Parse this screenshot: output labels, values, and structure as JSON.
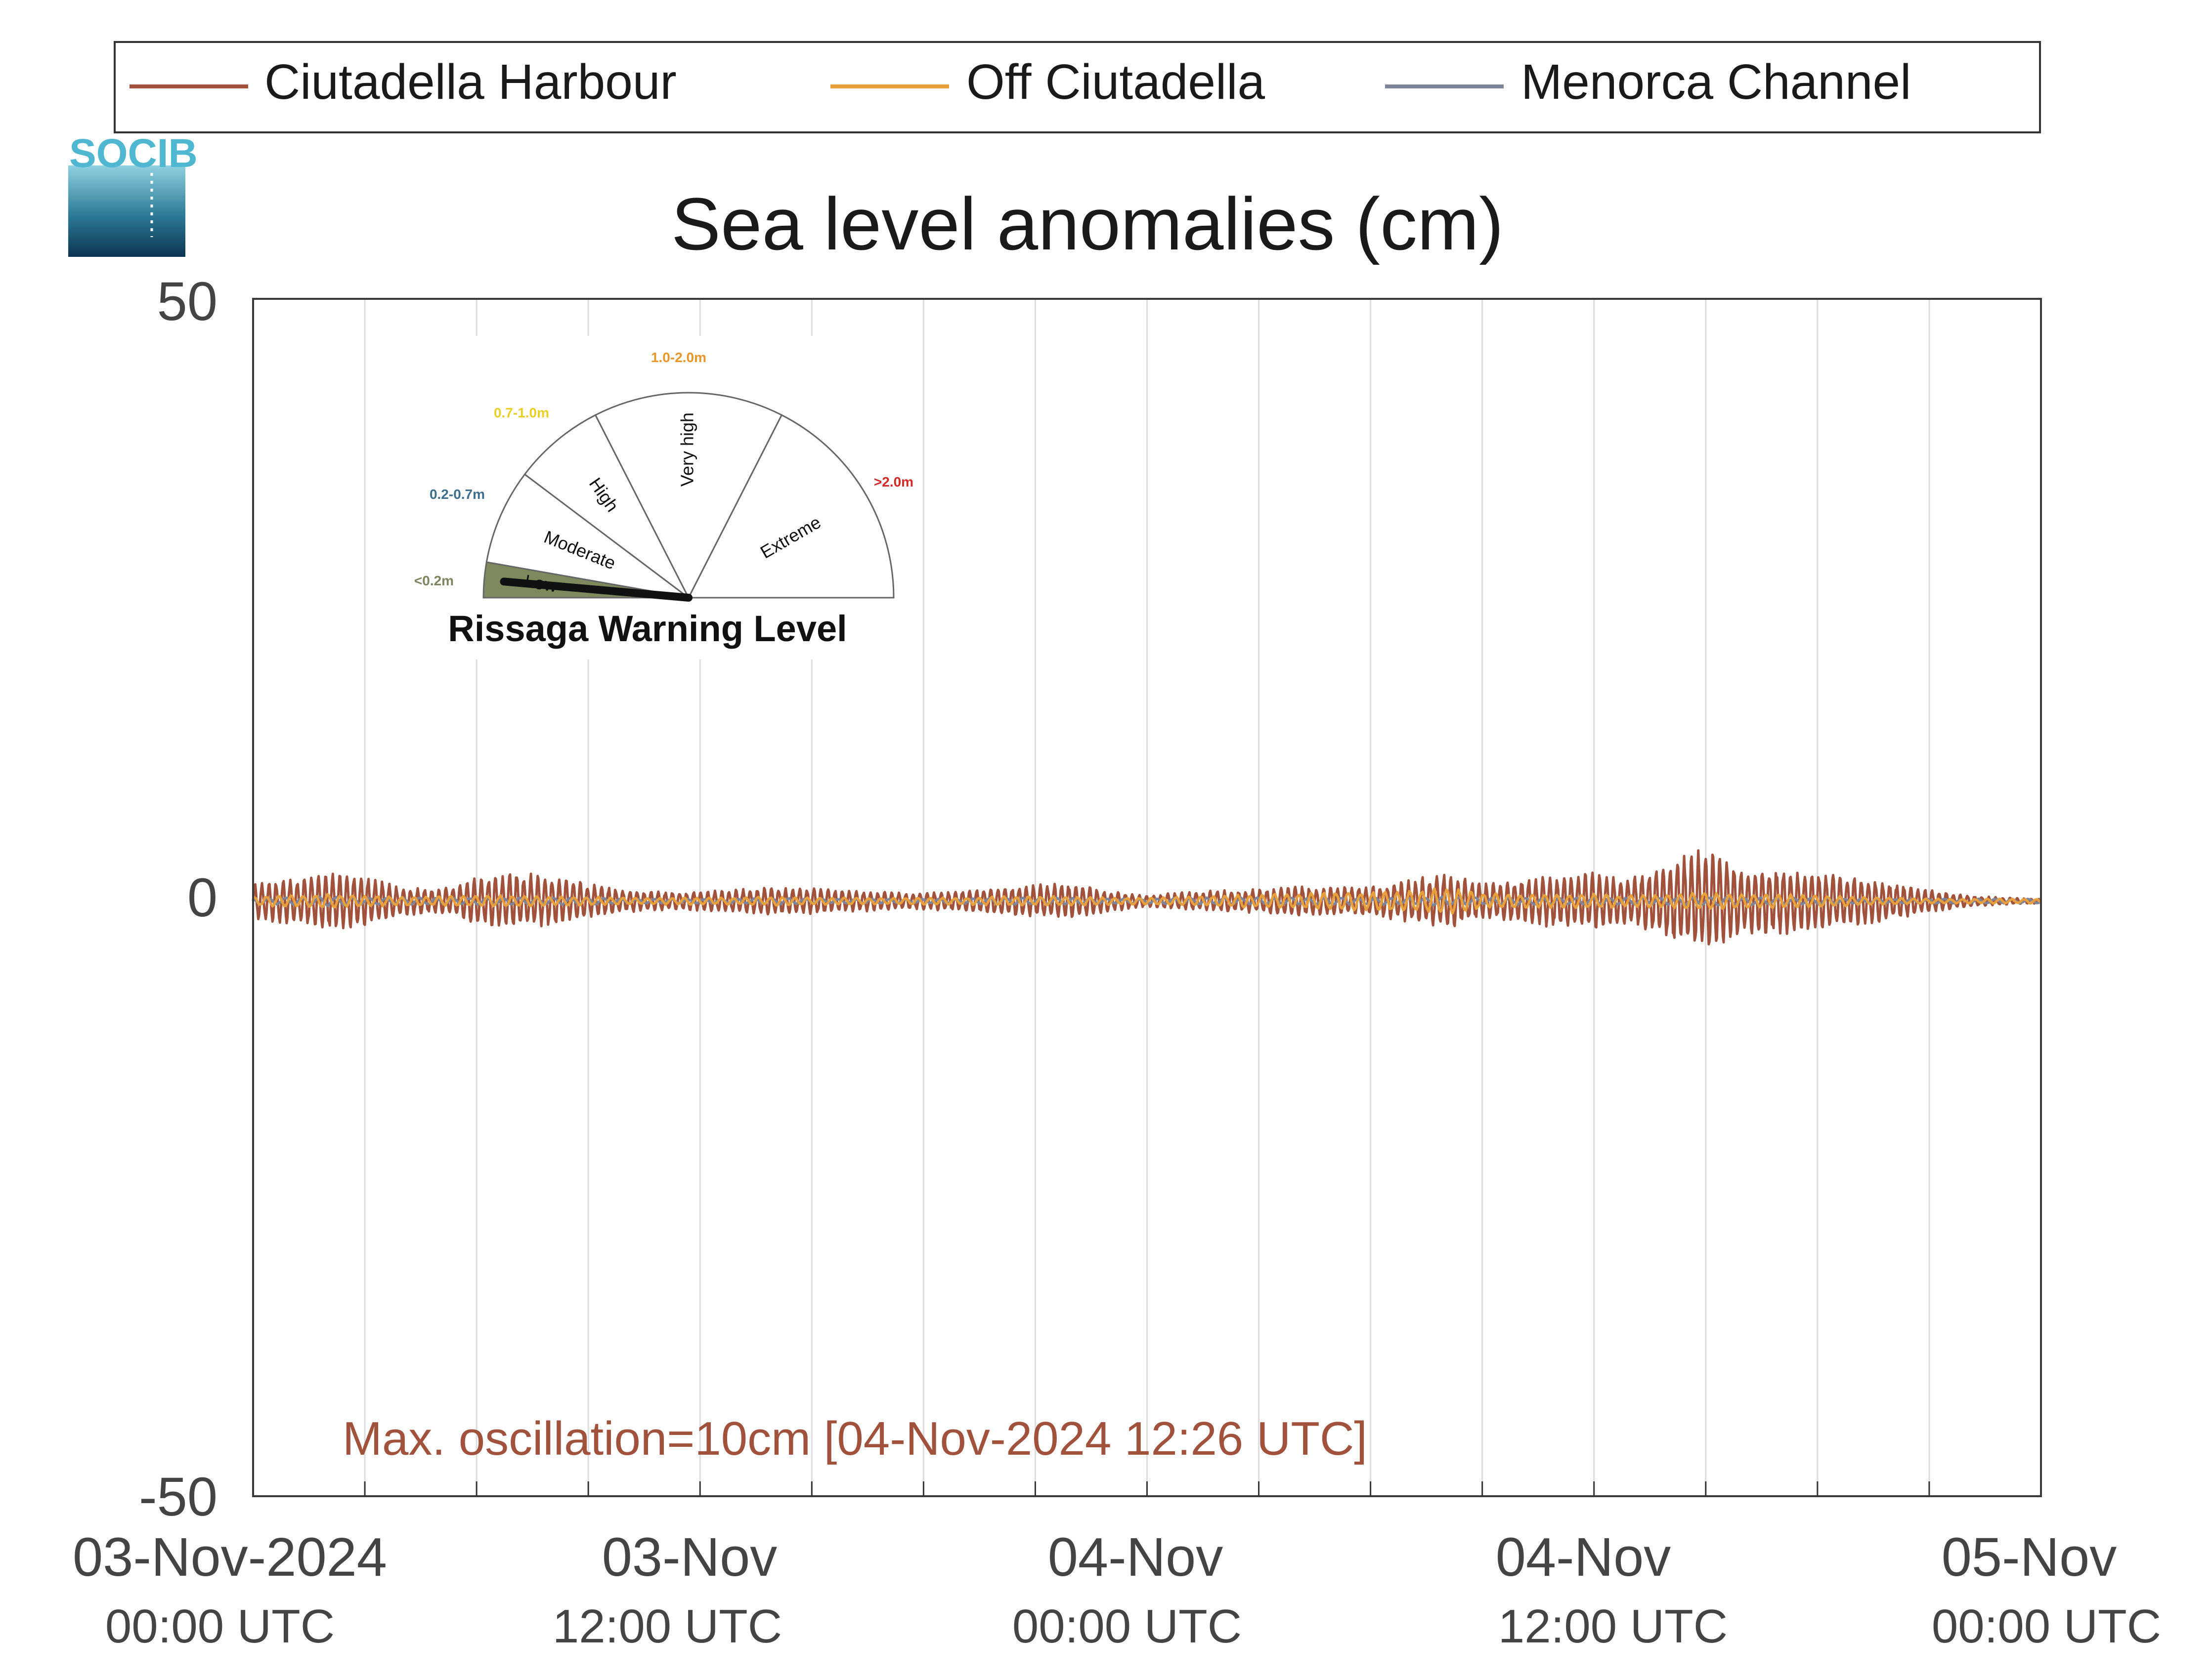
{
  "chart_data": {
    "type": "line",
    "title": "Sea level anomalies (cm)",
    "xlabel": "",
    "ylabel": "",
    "ylim": [
      -50,
      50
    ],
    "yticks": [
      -50,
      0,
      50
    ],
    "xlim_hours": [
      0,
      48
    ],
    "x_tick_labels": [
      {
        "top": "03-Nov-2024",
        "bottom": "00:00 UTC"
      },
      {
        "top": "03-Nov",
        "bottom": "12:00 UTC"
      },
      {
        "top": "04-Nov",
        "bottom": "00:00 UTC"
      },
      {
        "top": "04-Nov",
        "bottom": "12:00 UTC"
      },
      {
        "top": "05-Nov",
        "bottom": "00:00 UTC"
      }
    ],
    "grid": true,
    "legend_position": "top",
    "series": [
      {
        "name": "Ciutadella Harbour",
        "color": "#A0523D"
      },
      {
        "name": "Off Ciutadella",
        "color": "#E8A03C"
      },
      {
        "name": "Menorca Channel",
        "color": "#7E8499"
      }
    ],
    "envelope": {
      "hours": [
        0,
        1,
        2,
        3,
        4,
        5,
        6,
        7,
        8,
        9,
        10,
        11,
        12,
        13,
        14,
        15,
        16,
        17,
        18,
        19,
        20,
        21,
        22,
        23,
        24,
        25,
        26,
        27,
        28,
        29,
        30,
        31,
        32,
        33,
        34,
        35,
        36,
        37,
        38,
        39,
        40,
        41,
        42,
        43,
        44,
        45,
        46,
        47,
        48
      ],
      "Ciutadella Harbour": [
        1.5,
        2.0,
        2.5,
        2.2,
        1.2,
        1.0,
        2.0,
        2.5,
        2.2,
        1.5,
        1.0,
        0.8,
        0.8,
        1.0,
        1.2,
        1.2,
        0.9,
        0.8,
        0.7,
        0.9,
        1.2,
        1.4,
        1.5,
        0.9,
        0.5,
        0.8,
        0.9,
        1.0,
        1.3,
        1.2,
        1.3,
        1.8,
        2.4,
        1.5,
        1.8,
        2.3,
        2.4,
        2.0,
        3.5,
        4.6,
        3.0,
        2.8,
        2.5,
        2.2,
        1.6,
        1.0,
        0.5,
        0.3,
        0.2
      ],
      "Off Ciutadella": [
        0.4,
        0.5,
        0.6,
        0.5,
        0.4,
        0.4,
        0.5,
        0.5,
        0.4,
        0.4,
        0.3,
        0.3,
        0.3,
        0.3,
        0.4,
        0.3,
        0.3,
        0.3,
        0.3,
        0.3,
        0.4,
        0.4,
        0.4,
        0.3,
        0.3,
        0.4,
        0.5,
        0.6,
        0.7,
        0.8,
        0.8,
        0.9,
        1.2,
        0.7,
        0.6,
        0.6,
        0.6,
        0.5,
        0.6,
        0.8,
        0.6,
        0.6,
        0.5,
        0.4,
        0.3,
        0.2,
        0.2,
        0.2,
        0.2
      ],
      "Menorca Channel": [
        0.3,
        0.3,
        0.4,
        0.3,
        0.3,
        0.3,
        0.3,
        0.3,
        0.3,
        0.3,
        0.2,
        0.2,
        0.2,
        0.2,
        0.3,
        0.2,
        0.2,
        0.2,
        0.2,
        0.2,
        0.3,
        0.3,
        0.3,
        0.2,
        0.2,
        0.3,
        0.3,
        0.3,
        0.3,
        0.3,
        0.3,
        0.3,
        0.4,
        0.3,
        0.3,
        0.3,
        0.3,
        0.3,
        0.3,
        0.4,
        0.3,
        0.3,
        0.3,
        0.2,
        0.2,
        0.2,
        0.2,
        0.2,
        0.2
      ]
    },
    "annotation": "Max. oscillation=10cm [04-Nov-2024 12:26 UTC]"
  },
  "logo": {
    "text": "SOCIB"
  },
  "gauge": {
    "title": "Rissaga Warning Level",
    "current_level": "Low",
    "sectors": [
      {
        "label": "Low",
        "range": "<0.2m",
        "range_color": "#7B8560"
      },
      {
        "label": "Moderate",
        "range": "0.2-0.7m",
        "range_color": "#3D6E8C"
      },
      {
        "label": "High",
        "range": "0.7-1.0m",
        "range_color": "#E8D028"
      },
      {
        "label": "Very high",
        "range": "1.0-2.0m",
        "range_color": "#E8962A"
      },
      {
        "label": "Extreme",
        "range": ">2.0m",
        "range_color": "#D22A2A"
      }
    ],
    "active_color": "#7E8A5E"
  }
}
